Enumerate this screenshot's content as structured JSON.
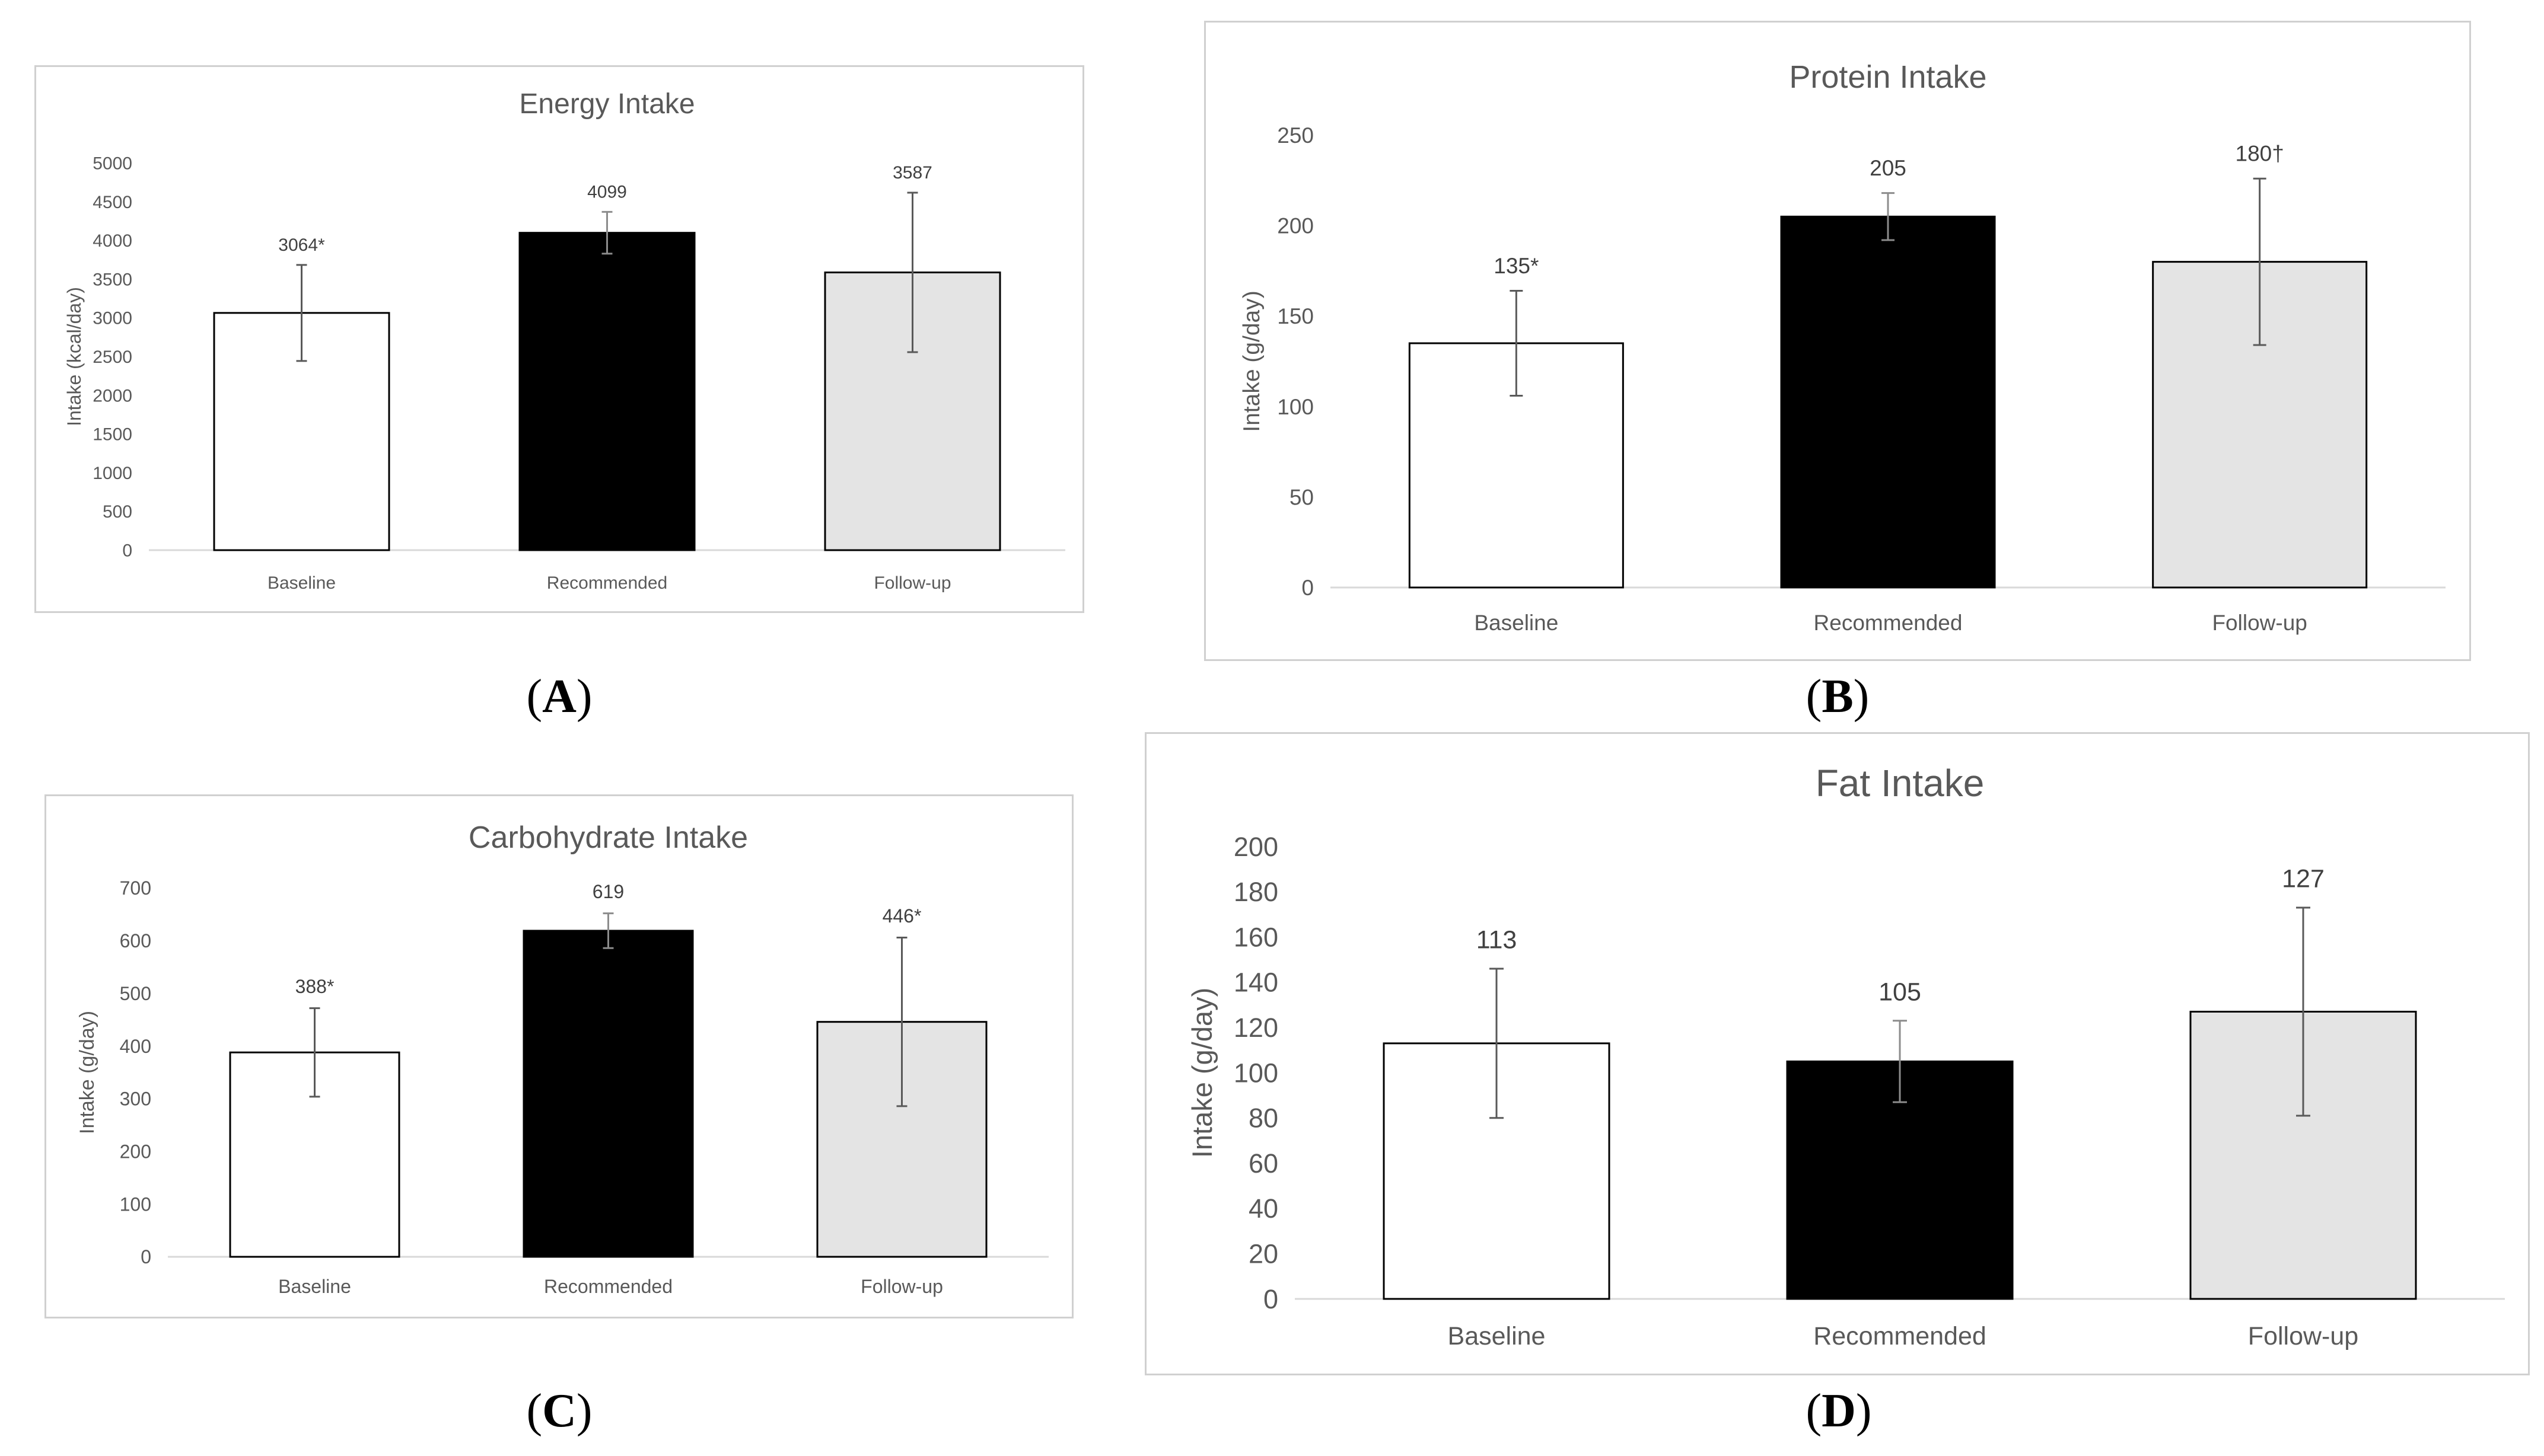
{
  "chart_data": [
    {
      "type": "bar",
      "panel_label": "A",
      "title": "Energy Intake",
      "xlabel": "",
      "ylabel": "Intake (kcal/day)",
      "categories": [
        "Baseline",
        "Recommended",
        "Follow-up"
      ],
      "values": [
        3064,
        4099,
        3587
      ],
      "errors": [
        620,
        270,
        1030
      ],
      "data_labels": [
        "3064*",
        "4099",
        "3587"
      ],
      "bar_colors": [
        "#ffffff",
        "#000000",
        "#e4e4e4"
      ],
      "ylim": [
        0,
        5000
      ],
      "yticks": [
        0,
        500,
        1000,
        1500,
        2000,
        2500,
        3000,
        3500,
        4000,
        4500,
        5000
      ],
      "grid": false
    },
    {
      "type": "bar",
      "panel_label": "B",
      "title": "Protein Intake",
      "xlabel": "",
      "ylabel": "Intake (g/day)",
      "categories": [
        "Baseline",
        "Recommended",
        "Follow-up"
      ],
      "values": [
        135,
        205,
        180
      ],
      "errors": [
        29,
        13,
        46
      ],
      "data_labels": [
        "135*",
        "205",
        "180†"
      ],
      "bar_colors": [
        "#ffffff",
        "#000000",
        "#e4e4e4"
      ],
      "ylim": [
        0,
        250
      ],
      "yticks": [
        0,
        50,
        100,
        150,
        200,
        250
      ],
      "grid": false
    },
    {
      "type": "bar",
      "panel_label": "C",
      "title": "Carbohydrate Intake",
      "xlabel": "",
      "ylabel": "Intake (g/day)",
      "categories": [
        "Baseline",
        "Recommended",
        "Follow-up"
      ],
      "values": [
        388,
        619,
        446
      ],
      "errors": [
        84,
        33,
        160
      ],
      "data_labels": [
        "388*",
        "619",
        "446*"
      ],
      "bar_colors": [
        "#ffffff",
        "#000000",
        "#e4e4e4"
      ],
      "ylim": [
        0,
        700
      ],
      "yticks": [
        0,
        100,
        200,
        300,
        400,
        500,
        600,
        700
      ],
      "grid": false
    },
    {
      "type": "bar",
      "panel_label": "D",
      "title": "Fat Intake",
      "xlabel": "",
      "ylabel": "Intake (g/day)",
      "categories": [
        "Baseline",
        "Recommended",
        "Follow-up"
      ],
      "values": [
        113,
        105,
        127
      ],
      "errors": [
        33,
        18,
        46
      ],
      "data_labels": [
        "113",
        "105",
        "127"
      ],
      "bar_colors": [
        "#ffffff",
        "#000000",
        "#e4e4e4"
      ],
      "ylim": [
        0,
        200
      ],
      "yticks": [
        0,
        20,
        40,
        60,
        80,
        100,
        120,
        140,
        160,
        180,
        200
      ],
      "grid": false
    }
  ]
}
